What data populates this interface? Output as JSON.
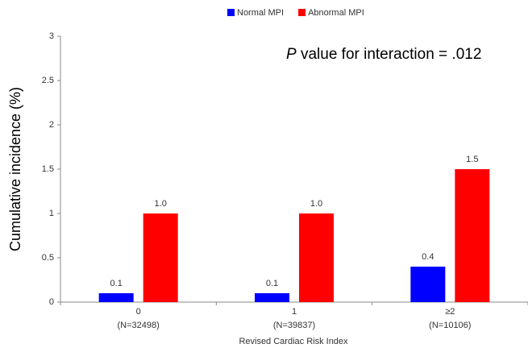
{
  "chart_data": {
    "type": "bar",
    "categories": [
      [
        "0",
        "(N=32498)"
      ],
      [
        "1",
        "(N=39837)"
      ],
      [
        "≥2",
        "(N=10106)"
      ]
    ],
    "series": [
      {
        "name": "Normal MPI",
        "color": "#0000ff",
        "values": [
          0.1,
          0.1,
          0.4
        ],
        "value_labels": [
          "0.1",
          "0.1",
          "0.4"
        ]
      },
      {
        "name": "Abnormal MPI",
        "color": "#ff0000",
        "values": [
          1.0,
          1.0,
          1.5
        ],
        "value_labels": [
          "1.0",
          "1.0",
          "1.5"
        ]
      }
    ],
    "x_label": "Revised Cardiac Risk Index",
    "y_label": "Cumulative incidence (%)",
    "annotation": {
      "italic": "P",
      "text": " value for interaction = .012"
    },
    "ylim": [
      0,
      3
    ],
    "yticks": [
      0,
      0.5,
      1,
      1.5,
      2,
      2.5,
      3
    ],
    "grid": false,
    "legend": "top"
  }
}
